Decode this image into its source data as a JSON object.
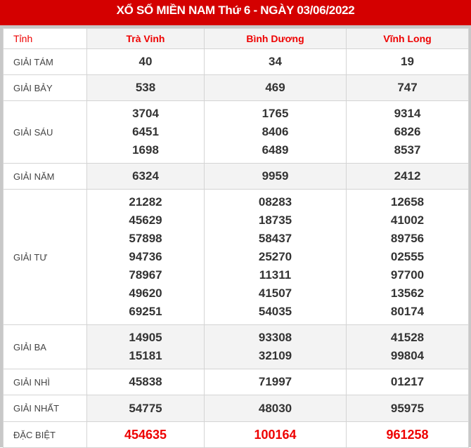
{
  "title": "XỔ SỐ MIỀN NAM Thứ 6 - NGÀY 03/06/2022",
  "header": {
    "label": "Tỉnh",
    "provinces": [
      "Trà Vinh",
      "Bình Dương",
      "Vĩnh Long"
    ]
  },
  "colors": {
    "brand": "#d40000",
    "special": "#e00000"
  },
  "rows": [
    {
      "label": "GIẢI TÁM",
      "values": [
        [
          "40"
        ],
        [
          "34"
        ],
        [
          "19"
        ]
      ]
    },
    {
      "label": "GIẢI BẢY",
      "values": [
        [
          "538"
        ],
        [
          "469"
        ],
        [
          "747"
        ]
      ]
    },
    {
      "label": "GIẢI SÁU",
      "values": [
        [
          "3704",
          "6451",
          "1698"
        ],
        [
          "1765",
          "8406",
          "6489"
        ],
        [
          "9314",
          "6826",
          "8537"
        ]
      ]
    },
    {
      "label": "GIẢI NĂM",
      "values": [
        [
          "6324"
        ],
        [
          "9959"
        ],
        [
          "2412"
        ]
      ]
    },
    {
      "label": "GIẢI TƯ",
      "values": [
        [
          "21282",
          "45629",
          "57898",
          "94736",
          "78967",
          "49620",
          "69251"
        ],
        [
          "08283",
          "18735",
          "58437",
          "25270",
          "11311",
          "41507",
          "54035"
        ],
        [
          "12658",
          "41002",
          "89756",
          "02555",
          "97700",
          "13562",
          "80174"
        ]
      ]
    },
    {
      "label": "GIẢI BA",
      "values": [
        [
          "14905",
          "15181"
        ],
        [
          "93308",
          "32109"
        ],
        [
          "41528",
          "99804"
        ]
      ]
    },
    {
      "label": "GIẢI NHÌ",
      "values": [
        [
          "45838"
        ],
        [
          "71997"
        ],
        [
          "01217"
        ]
      ]
    },
    {
      "label": "GIẢI NHẤT",
      "values": [
        [
          "54775"
        ],
        [
          "48030"
        ],
        [
          "95975"
        ]
      ]
    },
    {
      "label": "ĐẶC BIỆT",
      "values": [
        [
          "454635"
        ],
        [
          "100164"
        ],
        [
          "961258"
        ]
      ]
    }
  ]
}
